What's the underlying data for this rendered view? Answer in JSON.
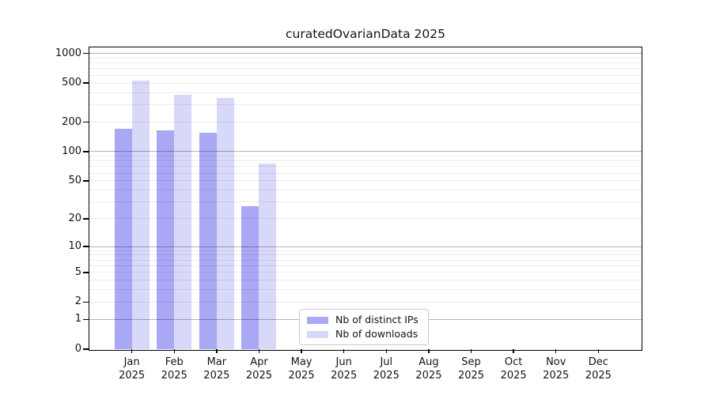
{
  "chart_data": {
    "type": "bar",
    "title": "curatedOvarianData 2025",
    "categories": [
      "Jan 2025",
      "Feb 2025",
      "Mar 2025",
      "Apr 2025",
      "May 2025",
      "Jun 2025",
      "Jul 2025",
      "Aug 2025",
      "Sep 2025",
      "Oct 2025",
      "Nov 2025",
      "Dec 2025"
    ],
    "months": [
      "Jan",
      "Feb",
      "Mar",
      "Apr",
      "May",
      "Jun",
      "Jul",
      "Aug",
      "Sep",
      "Oct",
      "Nov",
      "Dec"
    ],
    "year_label": "2025",
    "series": [
      {
        "name": "Nb of distinct IPs",
        "color": "#a8a8f5",
        "values": [
          170,
          165,
          155,
          27,
          0,
          0,
          0,
          0,
          0,
          0,
          0,
          0
        ]
      },
      {
        "name": "Nb of downloads",
        "color": "#d8d8f8",
        "values": [
          530,
          380,
          350,
          75,
          0,
          0,
          0,
          0,
          0,
          0,
          0,
          0
        ]
      }
    ],
    "y_scale": "log1p",
    "ylim": [
      0,
      1000
    ],
    "y_ticks": [
      0,
      1,
      2,
      5,
      10,
      20,
      50,
      100,
      200,
      500,
      1000
    ],
    "xlabel": "",
    "ylabel": "",
    "grid": "horizontal, major and minor log gridlines",
    "legend_position": "inside bottom-center",
    "colors": {
      "major_grid": "#b3b3b3",
      "minor_grid": "#ececec",
      "axis_frame": "#000000",
      "text": "#141414",
      "background": "#ffffff"
    }
  }
}
